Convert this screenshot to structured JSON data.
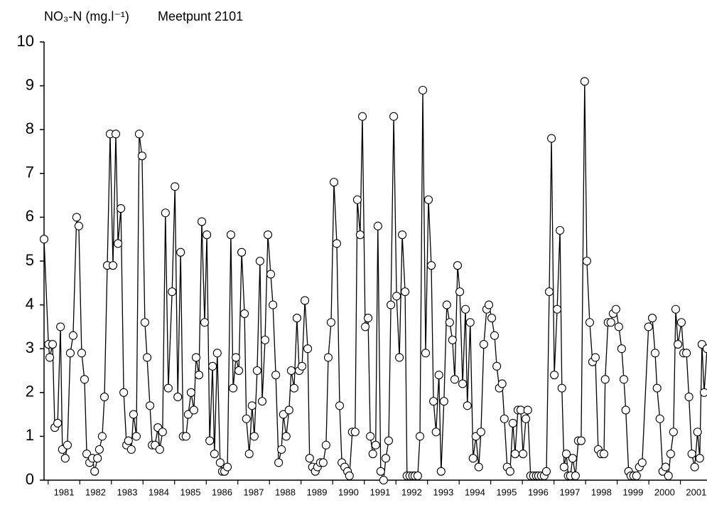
{
  "chart_data": {
    "type": "line",
    "y_label": "NO₃-N (mg.l⁻¹)",
    "title": "Meetpunt 2101",
    "color": "#000000",
    "marker_fill": "#ffffff",
    "xlim": [
      1980.87,
      2001.84
    ],
    "xticks": [
      1981,
      1982,
      1983,
      1984,
      1985,
      1986,
      1987,
      1988,
      1989,
      1990,
      1991,
      1992,
      1993,
      1994,
      1995,
      1996,
      1997,
      1998,
      1999,
      2000,
      2001
    ],
    "ylim": [
      0,
      10
    ],
    "yticks": [
      0,
      1,
      2,
      3,
      4,
      5,
      6,
      7,
      8,
      9,
      10
    ],
    "x": [
      1980.87,
      1981.01,
      1981.05,
      1981.14,
      1981.21,
      1981.3,
      1981.39,
      1981.45,
      1981.54,
      1981.61,
      1981.7,
      1981.79,
      1981.9,
      1981.97,
      1982.06,
      1982.15,
      1982.22,
      1982.31,
      1982.4,
      1982.47,
      1982.56,
      1982.62,
      1982.71,
      1982.78,
      1982.87,
      1982.96,
      1983.05,
      1983.14,
      1983.21,
      1983.3,
      1983.39,
      1983.48,
      1983.54,
      1983.63,
      1983.7,
      1983.79,
      1983.88,
      1983.97,
      1984.06,
      1984.13,
      1984.22,
      1984.29,
      1984.38,
      1984.47,
      1984.53,
      1984.62,
      1984.71,
      1984.8,
      1984.92,
      1985.01,
      1985.1,
      1985.19,
      1985.27,
      1985.36,
      1985.43,
      1985.52,
      1985.61,
      1985.68,
      1985.77,
      1985.86,
      1985.95,
      1986.02,
      1986.11,
      1986.2,
      1986.26,
      1986.35,
      1986.44,
      1986.51,
      1986.58,
      1986.67,
      1986.78,
      1986.85,
      1986.94,
      1987.03,
      1987.12,
      1987.21,
      1987.27,
      1987.36,
      1987.45,
      1987.52,
      1987.61,
      1987.7,
      1987.77,
      1987.86,
      1987.95,
      1988.04,
      1988.11,
      1988.2,
      1988.29,
      1988.38,
      1988.44,
      1988.53,
      1988.62,
      1988.69,
      1988.78,
      1988.87,
      1988.94,
      1989.03,
      1989.12,
      1989.21,
      1989.27,
      1989.36,
      1989.45,
      1989.52,
      1989.61,
      1989.7,
      1989.79,
      1989.86,
      1989.95,
      1990.04,
      1990.13,
      1990.22,
      1990.29,
      1990.38,
      1990.47,
      1990.53,
      1990.62,
      1990.71,
      1990.78,
      1990.87,
      1990.94,
      1991.03,
      1991.12,
      1991.19,
      1991.27,
      1991.36,
      1991.43,
      1991.52,
      1991.61,
      1991.68,
      1991.77,
      1991.84,
      1991.93,
      1992.02,
      1992.11,
      1992.2,
      1992.29,
      1992.35,
      1992.44,
      1992.53,
      1992.6,
      1992.69,
      1992.76,
      1992.85,
      1992.94,
      1993.03,
      1993.12,
      1993.19,
      1993.27,
      1993.36,
      1993.43,
      1993.52,
      1993.61,
      1993.7,
      1993.79,
      1993.86,
      1993.95,
      1994.02,
      1994.11,
      1994.2,
      1994.26,
      1994.35,
      1994.44,
      1994.53,
      1994.62,
      1994.69,
      1994.78,
      1994.87,
      1994.94,
      1995.03,
      1995.12,
      1995.19,
      1995.27,
      1995.36,
      1995.43,
      1995.52,
      1995.61,
      1995.7,
      1995.77,
      1995.86,
      1995.95,
      1996.02,
      1996.11,
      1996.17,
      1996.26,
      1996.35,
      1996.44,
      1996.51,
      1996.6,
      1996.69,
      1996.76,
      1996.85,
      1996.92,
      1997.01,
      1997.1,
      1997.19,
      1997.25,
      1997.32,
      1997.39,
      1997.45,
      1997.52,
      1997.59,
      1997.68,
      1997.77,
      1997.86,
      1997.97,
      1998.04,
      1998.13,
      1998.22,
      1998.31,
      1998.4,
      1998.49,
      1998.58,
      1998.62,
      1998.71,
      1998.8,
      1998.87,
      1998.96,
      1999.05,
      1999.14,
      1999.21,
      1999.27,
      1999.36,
      1999.43,
      1999.52,
      1999.61,
      1999.7,
      1999.79,
      1999.99,
      2000.11,
      2000.2,
      2000.26,
      2000.35,
      2000.44,
      2000.53,
      2000.62,
      2000.69,
      2000.78,
      2000.85,
      2000.92,
      2001.03,
      2001.1,
      2001.19,
      2001.27,
      2001.36,
      2001.45,
      2001.54,
      2001.61,
      2001.68,
      2001.75,
      2001.84
    ],
    "values": [
      5.5,
      3.1,
      2.8,
      3.1,
      1.2,
      1.3,
      3.5,
      0.7,
      0.5,
      0.8,
      2.9,
      3.3,
      6.0,
      5.8,
      2.9,
      2.3,
      0.6,
      0.4,
      0.5,
      0.2,
      0.5,
      0.7,
      1.0,
      1.9,
      4.9,
      7.9,
      4.9,
      7.9,
      5.4,
      6.2,
      2.0,
      0.8,
      0.9,
      0.7,
      1.5,
      1.0,
      7.9,
      7.4,
      3.6,
      2.8,
      1.7,
      0.8,
      0.8,
      1.2,
      0.7,
      1.1,
      6.1,
      2.1,
      4.3,
      6.7,
      1.9,
      5.2,
      1.0,
      1.0,
      1.5,
      2.0,
      1.6,
      2.8,
      2.4,
      5.9,
      3.6,
      5.6,
      0.9,
      2.6,
      0.6,
      2.9,
      0.4,
      0.2,
      0.2,
      0.3,
      5.6,
      2.1,
      2.8,
      2.5,
      5.2,
      3.8,
      1.4,
      0.6,
      1.7,
      1.0,
      2.5,
      5.0,
      1.8,
      3.2,
      5.6,
      4.7,
      4.0,
      2.4,
      0.4,
      0.7,
      1.5,
      1.0,
      1.6,
      2.5,
      2.1,
      3.7,
      2.5,
      2.6,
      4.1,
      3.0,
      0.5,
      0.3,
      0.2,
      0.3,
      0.4,
      0.4,
      0.8,
      2.8,
      3.6,
      6.8,
      5.4,
      1.7,
      0.4,
      0.3,
      0.2,
      0.1,
      1.1,
      1.1,
      6.4,
      5.6,
      8.3,
      3.5,
      3.7,
      1.0,
      0.6,
      0.8,
      5.8,
      0.2,
      0.0,
      0.5,
      0.9,
      4.0,
      8.3,
      4.2,
      2.8,
      5.6,
      4.3,
      0.1,
      0.1,
      0.1,
      0.1,
      0.1,
      1.0,
      8.9,
      2.9,
      6.4,
      4.9,
      1.8,
      1.1,
      2.4,
      0.2,
      1.8,
      4.0,
      3.6,
      3.2,
      2.3,
      4.9,
      4.3,
      2.2,
      3.9,
      1.7,
      3.6,
      0.5,
      1.0,
      0.3,
      1.1,
      3.1,
      3.9,
      4.0,
      3.7,
      3.3,
      2.6,
      2.1,
      2.2,
      1.4,
      0.3,
      0.2,
      1.3,
      0.6,
      1.6,
      1.6,
      0.6,
      1.4,
      1.6,
      0.1,
      0.1,
      0.1,
      0.1,
      0.1,
      0.1,
      0.2,
      4.3,
      7.8,
      2.4,
      3.9,
      5.7,
      2.1,
      0.3,
      0.6,
      0.1,
      0.1,
      0.5,
      0.1,
      0.9,
      0.9,
      9.1,
      5.0,
      3.6,
      2.7,
      2.8,
      0.7,
      0.6,
      0.6,
      2.3,
      3.6,
      3.6,
      3.8,
      3.9,
      3.5,
      3.0,
      2.3,
      1.6,
      0.2,
      0.1,
      0.1,
      0.1,
      0.3,
      0.4,
      3.5,
      3.7,
      2.9,
      2.1,
      1.4,
      0.2,
      0.3,
      0.1,
      0.6,
      1.1,
      3.9,
      3.1,
      3.6,
      2.9,
      2.9,
      1.9,
      0.6,
      0.3,
      1.1,
      0.5,
      3.1,
      2.0,
      3.0
    ]
  }
}
